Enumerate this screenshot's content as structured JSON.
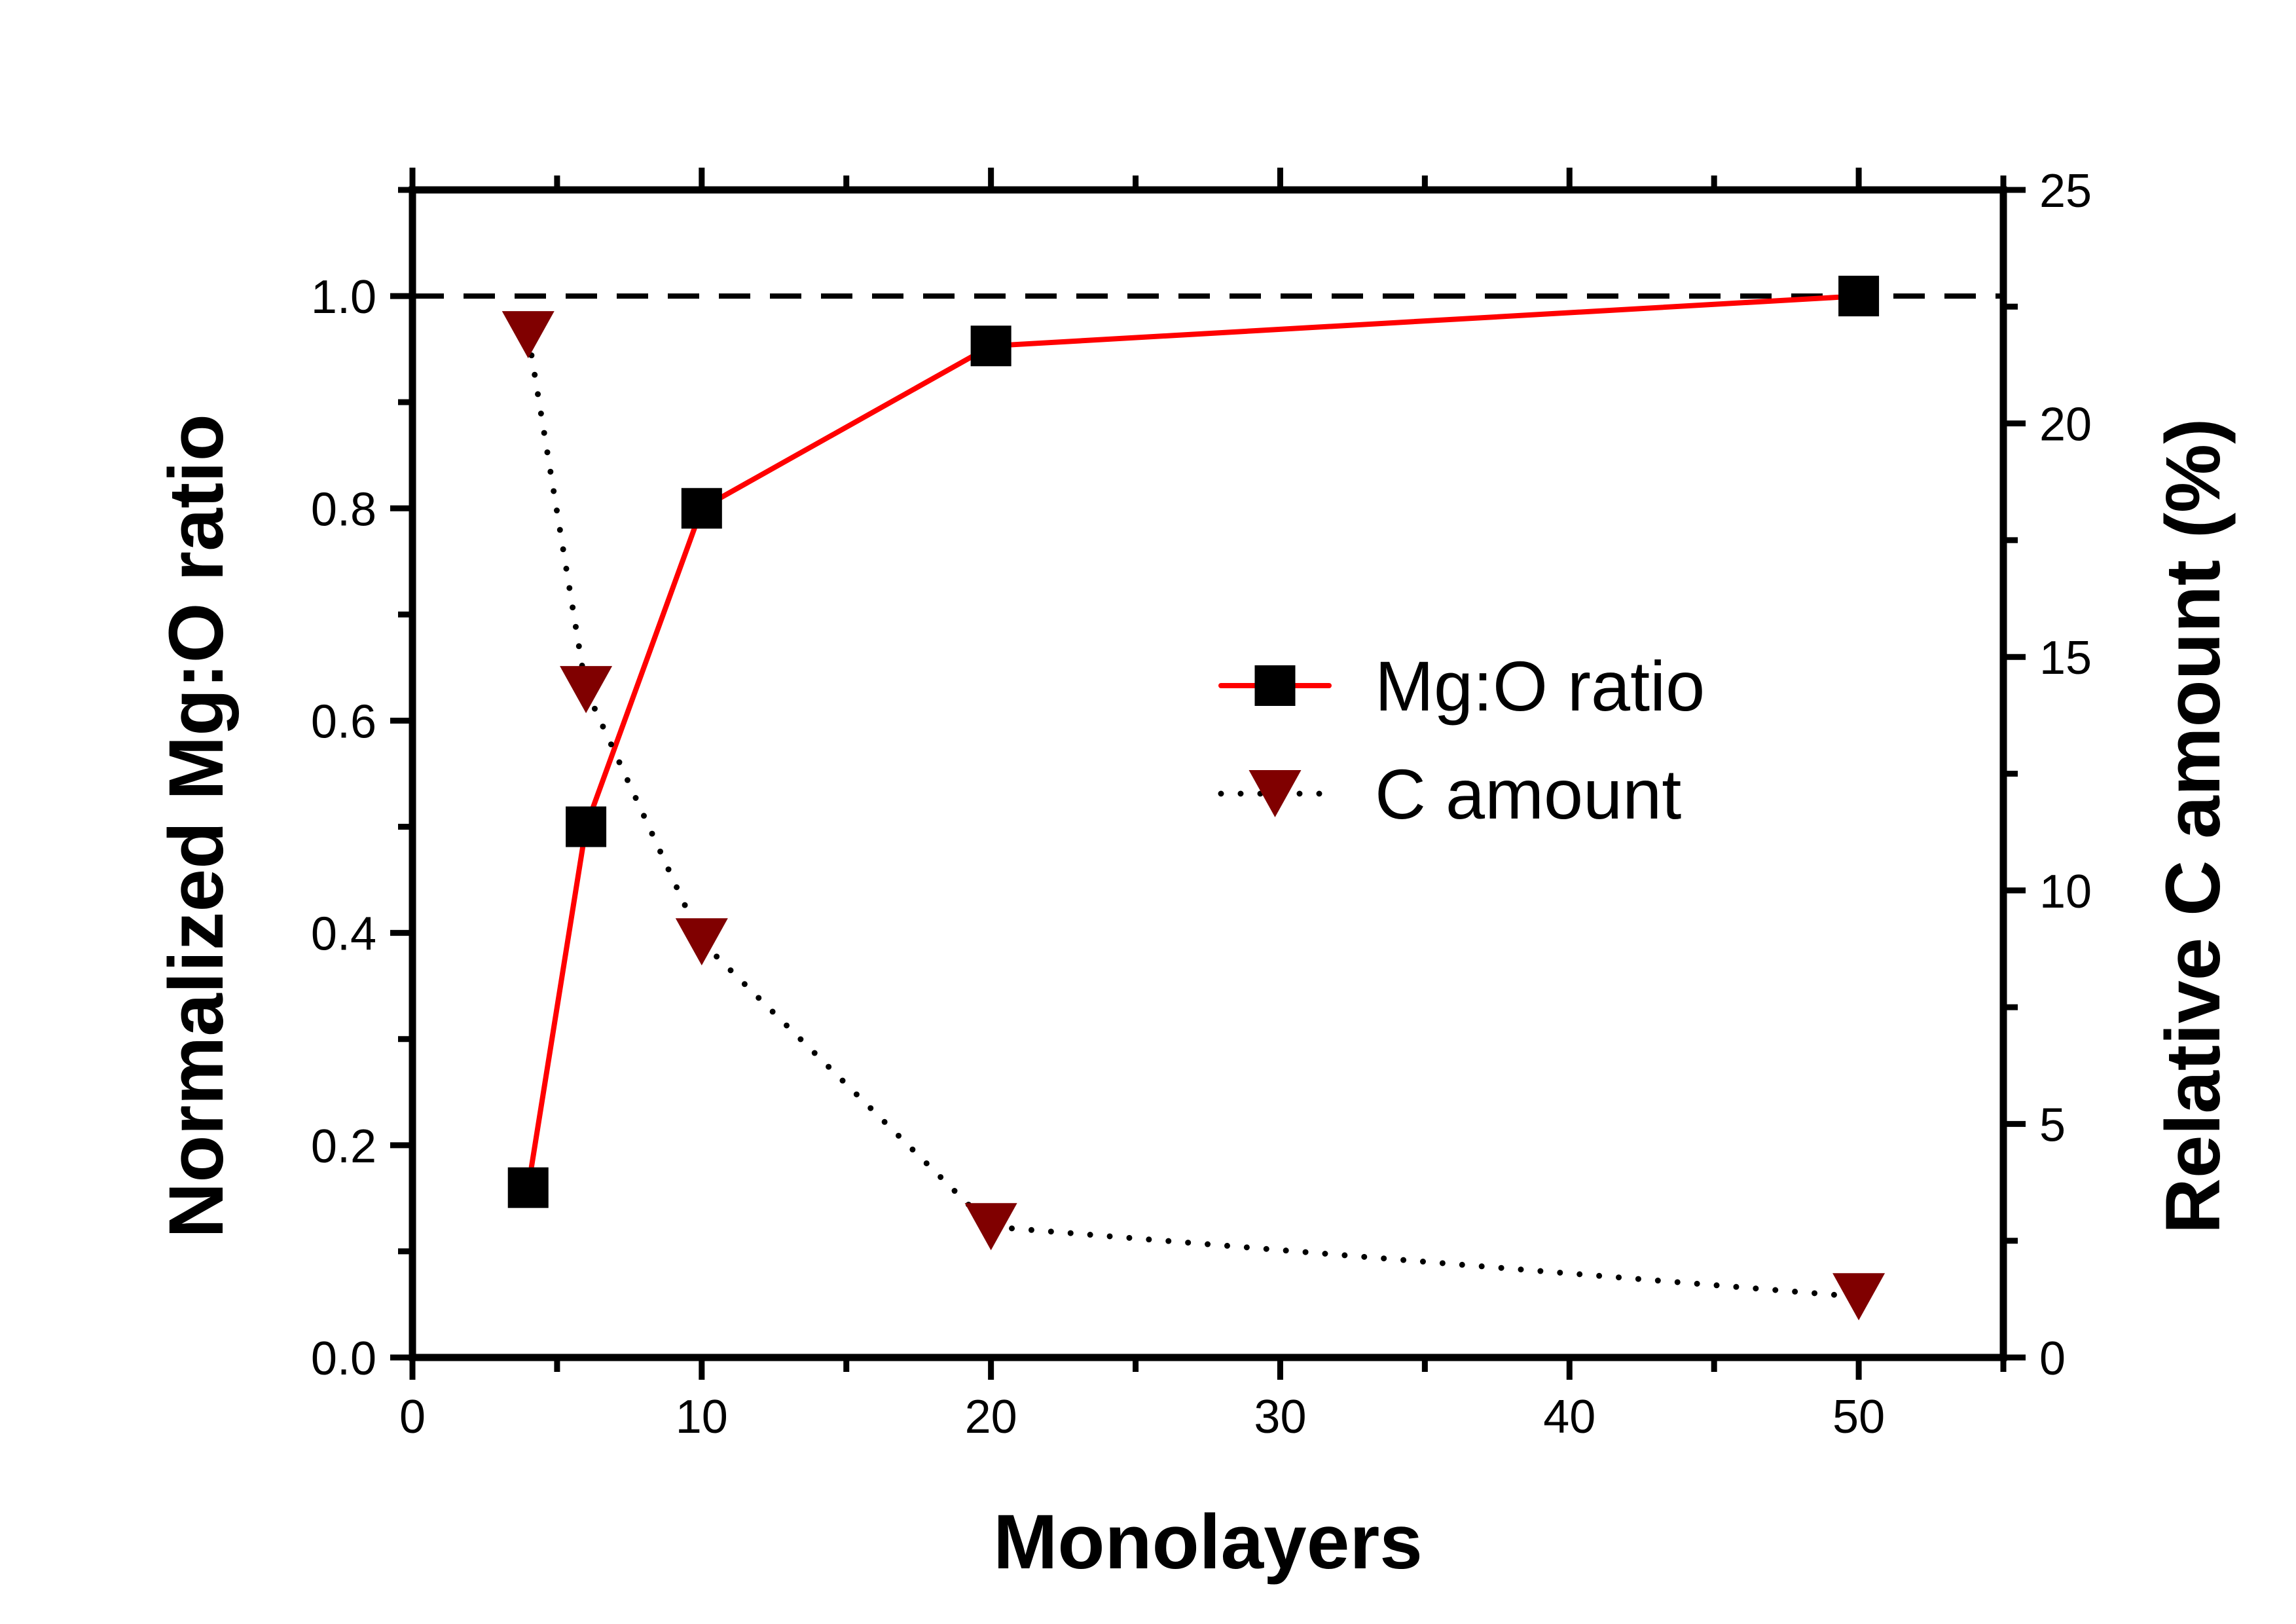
{
  "chart_data": {
    "type": "line",
    "title": "",
    "xlabel": "Monolayers",
    "ylabel_left": "Normalized Mg:O ratio",
    "ylabel_right": "Relative C amount (%)",
    "xlim": [
      0,
      55
    ],
    "ylim_left": [
      0,
      1.1
    ],
    "ylim_right": [
      0,
      25
    ],
    "x_ticks": [
      0,
      10,
      20,
      30,
      40,
      50
    ],
    "y_left_ticks": [
      0.0,
      0.2,
      0.4,
      0.6,
      0.8,
      1.0
    ],
    "y_right_ticks": [
      0,
      5,
      10,
      15,
      20,
      25
    ],
    "x_tick_labels": [
      "0",
      "10",
      "20",
      "30",
      "40",
      "50"
    ],
    "y_left_tick_labels": [
      "0.0",
      "0.2",
      "0.4",
      "0.6",
      "0.8",
      "1.0"
    ],
    "y_right_tick_labels": [
      "0",
      "5",
      "10",
      "15",
      "20",
      "25"
    ],
    "grid": false,
    "legend_position": "center-right",
    "reference_line": {
      "axis": "left",
      "y": 1.0,
      "style": "dashed",
      "color": "#000000"
    },
    "series": [
      {
        "name": "Mg:O ratio",
        "axis": "left",
        "marker": "square",
        "marker_color": "#000000",
        "line_color": "#ff0000",
        "line_style": "solid",
        "x": [
          4,
          6,
          10,
          20,
          50
        ],
        "y": [
          0.16,
          0.5,
          0.8,
          0.953,
          1.0
        ]
      },
      {
        "name": "C amount",
        "axis": "right",
        "marker": "triangle-down",
        "marker_color": "#800000",
        "line_color": "#000000",
        "line_style": "dotted",
        "x": [
          4,
          6,
          10,
          20,
          50
        ],
        "y": [
          21.9,
          14.3,
          8.9,
          2.8,
          1.3
        ]
      }
    ]
  }
}
